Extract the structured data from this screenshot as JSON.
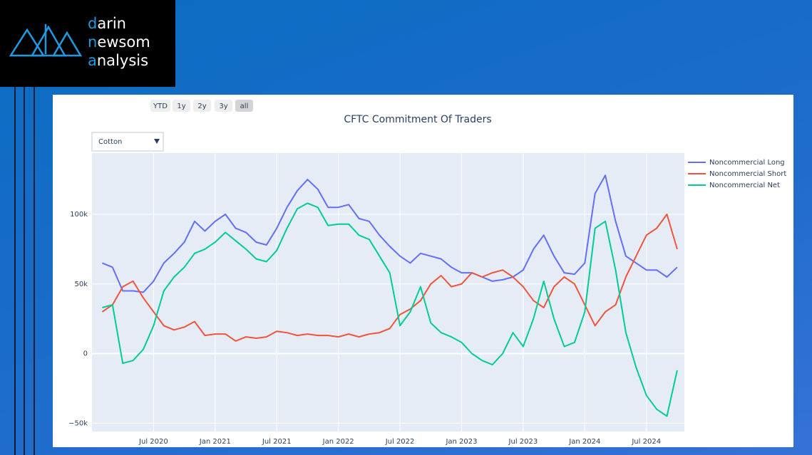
{
  "logo": [
    "darin",
    "newsom",
    "analysis"
  ],
  "chart_data": {
    "type": "line",
    "title": "CFTC Commitment Of Traders",
    "range_buttons": [
      "YTD",
      "1y",
      "2y",
      "3y",
      "all"
    ],
    "dropdown": "Cotton",
    "x": [
      "2020-02",
      "2020-03",
      "2020-04",
      "2020-05",
      "2020-06",
      "2020-07",
      "2020-08",
      "2020-09",
      "2020-10",
      "2020-11",
      "2020-12",
      "2021-01",
      "2021-02",
      "2021-03",
      "2021-04",
      "2021-05",
      "2021-06",
      "2021-07",
      "2021-08",
      "2021-09",
      "2021-10",
      "2021-11",
      "2021-12",
      "2022-01",
      "2022-02",
      "2022-03",
      "2022-04",
      "2022-05",
      "2022-06",
      "2022-07",
      "2022-08",
      "2022-09",
      "2022-10",
      "2022-11",
      "2022-12",
      "2023-01",
      "2023-02",
      "2023-03",
      "2023-04",
      "2023-05",
      "2023-06",
      "2023-07",
      "2023-08",
      "2023-09",
      "2023-10",
      "2023-11",
      "2023-12",
      "2024-01",
      "2024-02",
      "2024-03",
      "2024-04",
      "2024-05",
      "2024-06",
      "2024-07",
      "2024-08",
      "2024-09",
      "2024-10"
    ],
    "series": [
      {
        "name": "Noncommercial Long",
        "color": "#636efa",
        "values": [
          65000,
          62000,
          45000,
          45000,
          44000,
          52000,
          65000,
          72000,
          80000,
          95000,
          88000,
          95000,
          100000,
          90000,
          87000,
          80000,
          78000,
          90000,
          105000,
          117000,
          125000,
          118000,
          105000,
          105000,
          107000,
          97000,
          95000,
          85000,
          77000,
          70000,
          65000,
          72000,
          70000,
          68000,
          62000,
          58000,
          58000,
          55000,
          52000,
          53000,
          55000,
          60000,
          75000,
          85000,
          70000,
          58000,
          57000,
          65000,
          115000,
          128000,
          95000,
          70000,
          65000,
          60000,
          60000,
          55000,
          62000
        ]
      },
      {
        "name": "Noncommercial Short",
        "color": "#ef553b",
        "values": [
          30000,
          35000,
          48000,
          52000,
          40000,
          30000,
          20000,
          17000,
          19000,
          23000,
          13000,
          14000,
          14000,
          9000,
          12000,
          11000,
          12000,
          16000,
          15000,
          13000,
          14000,
          13000,
          13000,
          12000,
          14000,
          12000,
          14000,
          15000,
          18000,
          28000,
          32000,
          38000,
          50000,
          56000,
          48000,
          50000,
          58000,
          55000,
          58000,
          60000,
          55000,
          48000,
          38000,
          33000,
          48000,
          55000,
          50000,
          35000,
          20000,
          30000,
          35000,
          55000,
          70000,
          85000,
          90000,
          100000,
          75000
        ]
      },
      {
        "name": "Noncommercial Net",
        "color": "#00cc96",
        "values": [
          33000,
          35000,
          -7000,
          -5000,
          3000,
          20000,
          45000,
          55000,
          62000,
          72000,
          75000,
          80000,
          87000,
          81000,
          75000,
          68000,
          66000,
          74000,
          90000,
          104000,
          108000,
          105000,
          92000,
          93000,
          93000,
          85000,
          82000,
          70000,
          58000,
          20000,
          30000,
          48000,
          22000,
          15000,
          12000,
          8000,
          0,
          -5000,
          -8000,
          0,
          15000,
          5000,
          25000,
          52000,
          25000,
          5000,
          8000,
          30000,
          90000,
          95000,
          60000,
          15000,
          -10000,
          -30000,
          -40000,
          -45000,
          -12000
        ]
      }
    ],
    "xlim": [
      "2020-01",
      "2024-10"
    ],
    "xticks": [
      {
        "value": "2020-07",
        "label": "Jul 2020"
      },
      {
        "value": "2021-01",
        "label": "Jan 2021"
      },
      {
        "value": "2021-07",
        "label": "Jul 2021"
      },
      {
        "value": "2022-01",
        "label": "Jan 2022"
      },
      {
        "value": "2022-07",
        "label": "Jul 2022"
      },
      {
        "value": "2023-01",
        "label": "Jan 2023"
      },
      {
        "value": "2023-07",
        "label": "Jul 2023"
      },
      {
        "value": "2024-01",
        "label": "Jan 2024"
      },
      {
        "value": "2024-07",
        "label": "Jul 2024"
      }
    ],
    "ylim": [
      -56000,
      144000
    ],
    "yticks": [
      {
        "value": -50000,
        "label": "−50k"
      },
      0,
      {
        "value": 50000,
        "label": "50k"
      },
      {
        "value": 100000,
        "label": "100k"
      }
    ],
    "grid": true,
    "legend": "right"
  }
}
